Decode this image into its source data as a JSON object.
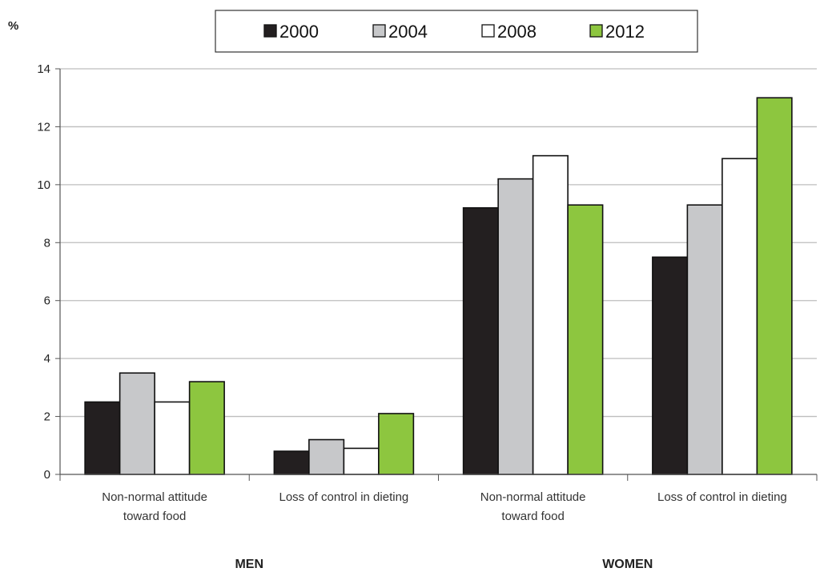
{
  "chart_data": {
    "type": "bar",
    "ylabel": "%",
    "ylim": [
      0,
      14
    ],
    "yticks": [
      0,
      2,
      4,
      6,
      8,
      10,
      12,
      14
    ],
    "grid": true,
    "legend_position": "top",
    "categories": [
      "Non-normal attitude\ntoward food",
      "Loss of control in dieting",
      "Non-normal attitude\ntoward food",
      "Loss of control in dieting"
    ],
    "groups": [
      {
        "label": "MEN",
        "category_indices": [
          0,
          1
        ]
      },
      {
        "label": "WOMEN",
        "category_indices": [
          2,
          3
        ]
      }
    ],
    "series": [
      {
        "name": "2000",
        "color": "#231f20",
        "values": [
          2.5,
          0.8,
          9.2,
          7.5
        ]
      },
      {
        "name": "2004",
        "color": "#c7c8ca",
        "values": [
          3.5,
          1.2,
          10.2,
          9.3
        ]
      },
      {
        "name": "2008",
        "color": "#ffffff",
        "values": [
          2.5,
          0.9,
          11.0,
          10.9
        ]
      },
      {
        "name": "2012",
        "color": "#8dc63f",
        "values": [
          3.2,
          2.1,
          9.3,
          13.0
        ]
      }
    ]
  }
}
